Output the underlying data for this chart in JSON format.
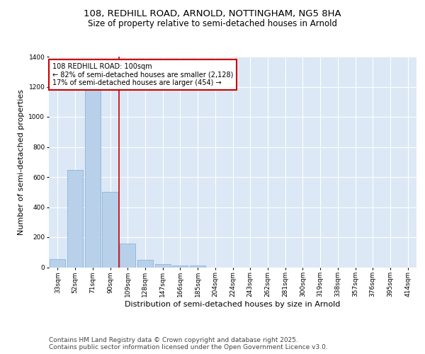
{
  "title_line1": "108, REDHILL ROAD, ARNOLD, NOTTINGHAM, NG5 8HA",
  "title_line2": "Size of property relative to semi-detached houses in Arnold",
  "xlabel": "Distribution of semi-detached houses by size in Arnold",
  "ylabel": "Number of semi-detached properties",
  "categories": [
    "33sqm",
    "52sqm",
    "71sqm",
    "90sqm",
    "109sqm",
    "128sqm",
    "147sqm",
    "166sqm",
    "185sqm",
    "204sqm",
    "224sqm",
    "243sqm",
    "262sqm",
    "281sqm",
    "300sqm",
    "319sqm",
    "338sqm",
    "357sqm",
    "376sqm",
    "395sqm",
    "414sqm"
  ],
  "values": [
    55,
    645,
    1190,
    500,
    160,
    50,
    20,
    10,
    10,
    0,
    0,
    0,
    0,
    0,
    0,
    0,
    0,
    0,
    0,
    0,
    0
  ],
  "bar_color": "#b8d0ea",
  "bar_edge_color": "#7aafd4",
  "vline_x_index": 3.5,
  "annotation_title": "108 REDHILL ROAD: 100sqm",
  "annotation_line1": "← 82% of semi-detached houses are smaller (2,128)",
  "annotation_line2": "17% of semi-detached houses are larger (454) →",
  "annotation_box_color": "#ffffff",
  "annotation_box_edge": "#cc0000",
  "vline_color": "#cc0000",
  "ylim": [
    0,
    1400
  ],
  "yticks": [
    0,
    200,
    400,
    600,
    800,
    1000,
    1200,
    1400
  ],
  "background_color": "#dce8f5",
  "fig_background": "#ffffff",
  "footer": "Contains HM Land Registry data © Crown copyright and database right 2025.\nContains public sector information licensed under the Open Government Licence v3.0.",
  "title_fontsize": 9.5,
  "subtitle_fontsize": 8.5,
  "axis_label_fontsize": 8,
  "tick_fontsize": 6.5,
  "footer_fontsize": 6.5,
  "annotation_fontsize": 7
}
